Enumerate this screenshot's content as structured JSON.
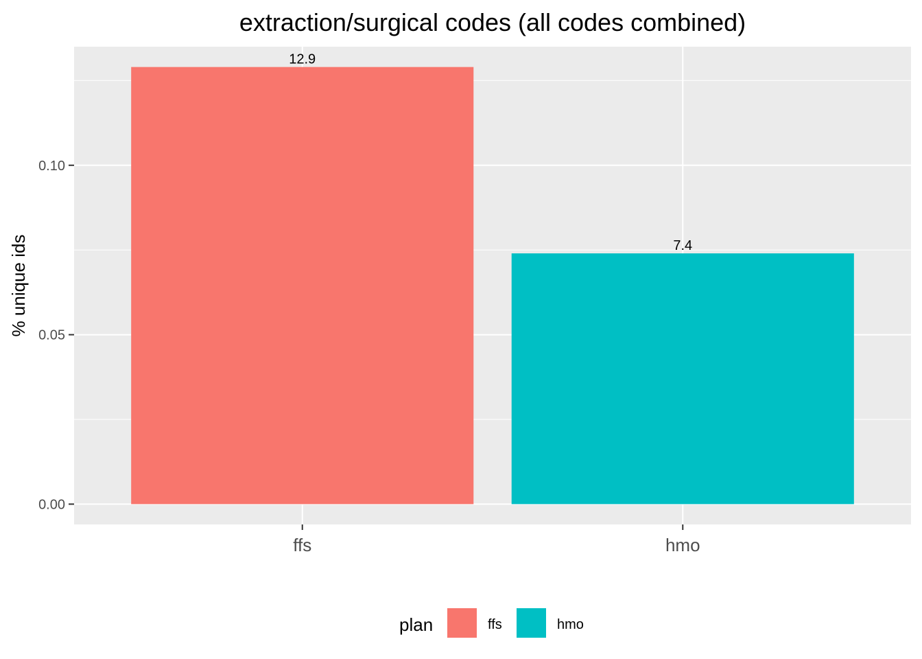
{
  "chart_data": {
    "type": "bar",
    "title": "extraction/surgical codes (all codes combined)",
    "xlabel": "",
    "ylabel": "% unique ids",
    "categories": [
      "ffs",
      "hmo"
    ],
    "values": [
      0.129,
      0.074
    ],
    "data_labels": [
      "12.9",
      "7.4"
    ],
    "ylim": [
      -0.006,
      0.135
    ],
    "yticks": [
      0.0,
      0.05,
      0.1
    ],
    "ytick_labels": [
      "0.00",
      "0.05",
      "0.10"
    ],
    "grid": true,
    "legend": {
      "title": "plan",
      "placement": "bottom",
      "entries": [
        "ffs",
        "hmo"
      ]
    },
    "colors": {
      "ffs": "#F8766D",
      "hmo": "#00BFC4",
      "panel": "#EBEBEB",
      "grid": "#FFFFFF"
    }
  }
}
